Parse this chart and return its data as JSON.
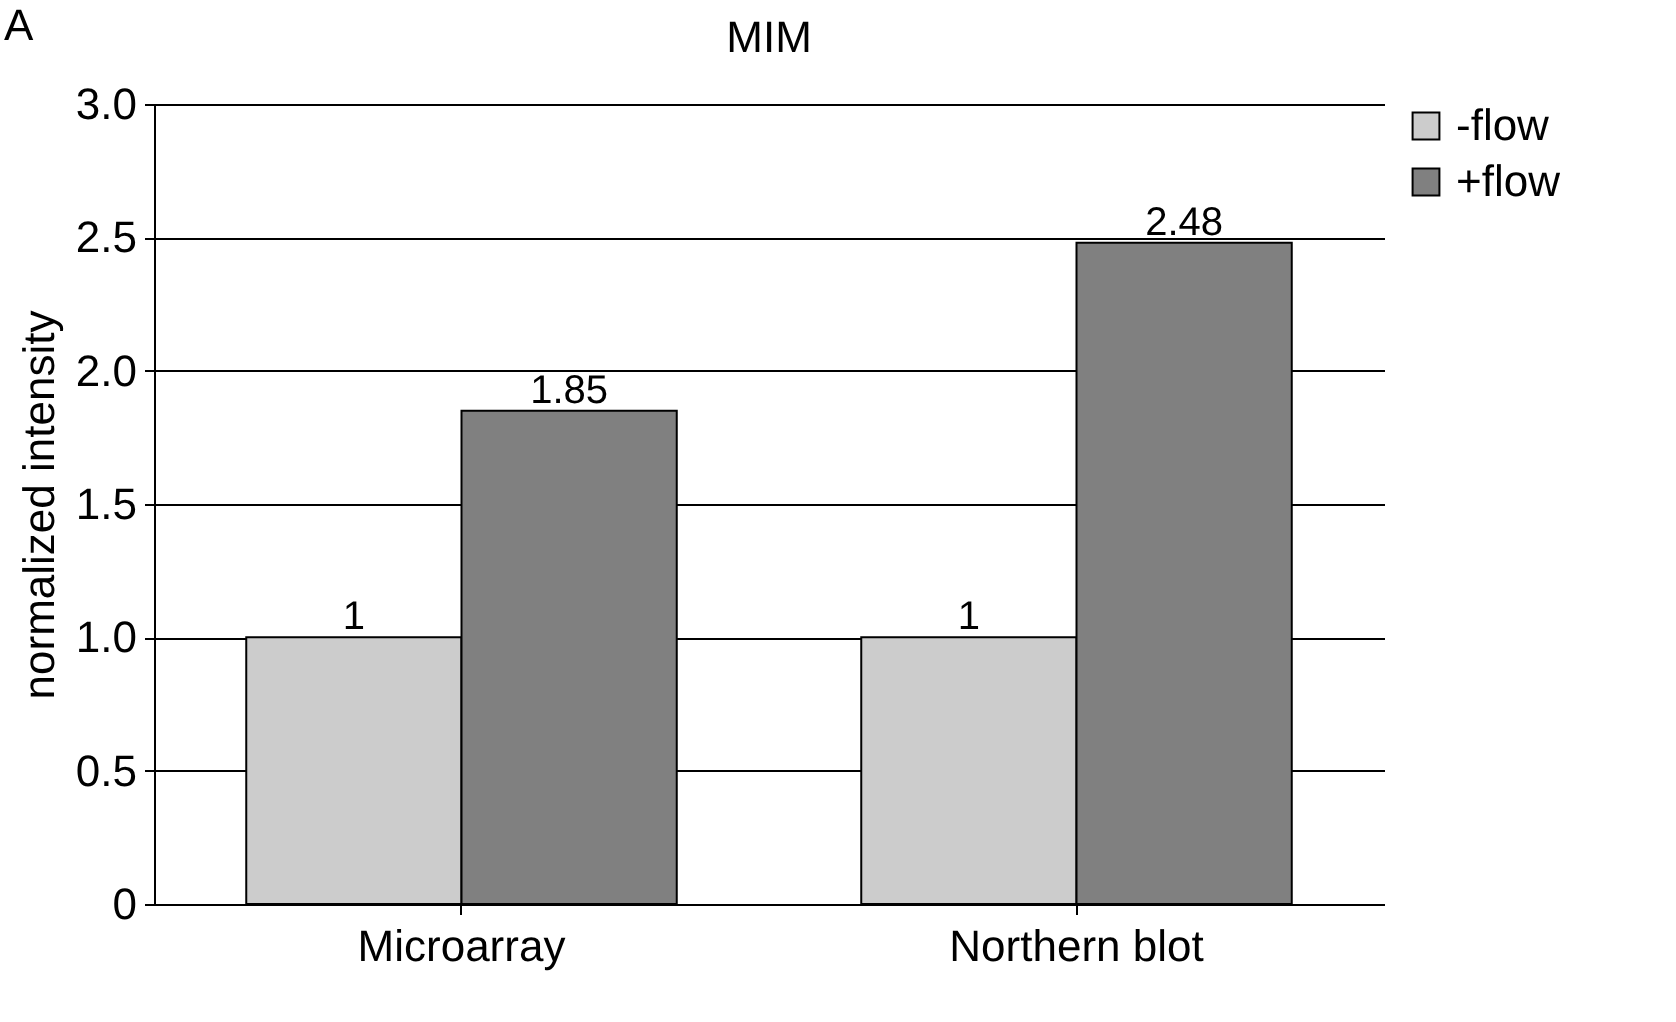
{
  "chart_data": {
    "type": "bar",
    "title": "MIM",
    "ylabel": "normalized intensity",
    "annotations": [
      "A"
    ],
    "categories": [
      "Microarray",
      "Northern blot"
    ],
    "series": [
      {
        "name": "-flow",
        "color": "#cccccc",
        "values": [
          1,
          1
        ]
      },
      {
        "name": "+flow",
        "color": "#808080",
        "values": [
          1.85,
          2.48
        ]
      }
    ],
    "ylim": [
      0,
      3
    ],
    "yticks": [
      0,
      0.5,
      {
        "value": 1,
        "label": "1.0"
      },
      1.5,
      {
        "value": 2,
        "label": "2.0"
      },
      2.5,
      {
        "value": 3,
        "label": "3.0"
      }
    ],
    "grid": "y",
    "legend": "right",
    "data_labels": true
  }
}
